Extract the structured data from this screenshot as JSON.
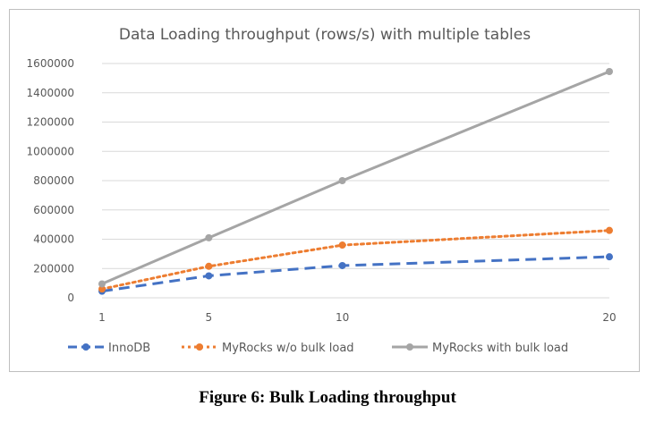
{
  "caption": "Figure 6: Bulk Loading throughput",
  "chart_data": {
    "type": "line",
    "title": "Data Loading throughput (rows/s) with multiple tables",
    "xlabel": "",
    "ylabel": "",
    "x": [
      1,
      5,
      10,
      20
    ],
    "x_tick_labels": [
      "1",
      "5",
      "10",
      "20"
    ],
    "ylim": [
      0,
      1600000
    ],
    "y_ticks": [
      0,
      200000,
      400000,
      600000,
      800000,
      1000000,
      1200000,
      1400000,
      1600000
    ],
    "y_tick_labels": [
      "0",
      "200000",
      "400000",
      "600000",
      "800000",
      "1000000",
      "1200000",
      "1400000",
      "1600000"
    ],
    "grid": true,
    "legend_position": "bottom",
    "series": [
      {
        "name": "InnoDB",
        "values": [
          45000,
          150000,
          220000,
          280000
        ],
        "color": "#4472c4",
        "style": "dashed"
      },
      {
        "name": "MyRocks w/o bulk load",
        "values": [
          60000,
          215000,
          360000,
          460000
        ],
        "color": "#ed7d31",
        "style": "dotted"
      },
      {
        "name": "MyRocks with bulk load",
        "values": [
          95000,
          410000,
          800000,
          1545000
        ],
        "color": "#a5a5a5",
        "style": "solid"
      }
    ]
  }
}
